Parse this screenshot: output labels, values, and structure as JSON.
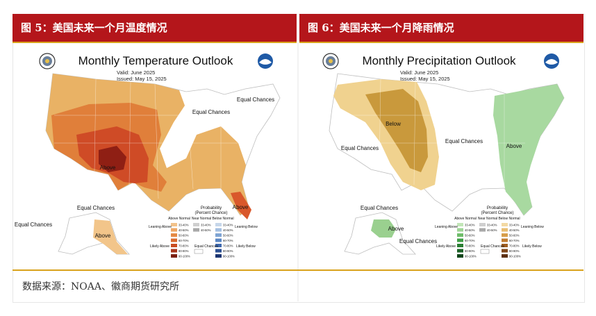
{
  "left_panel": {
    "header": "图 5：美国未来一个月温度情况",
    "map_title": "Monthly Temperature Outlook",
    "valid": "Valid:   June 2025",
    "issued": "Issued:   May 15, 2025",
    "labels": [
      "Above",
      "Equal Chances",
      "Equal Chances",
      "Above",
      "Equal Chances",
      "Above",
      "Equal Chances"
    ],
    "colors": {
      "light": "#e9b265",
      "mid": "#e07f3a",
      "strong": "#cf4b26",
      "darkest": "#8f1f14",
      "alaska": "#f2c58a"
    }
  },
  "right_panel": {
    "header": "图 6：美国未来一个月降雨情况",
    "map_title": "Monthly Precipitation Outlook",
    "valid": "Valid:   June 2025",
    "issued": "Issued:   May 15, 2025",
    "labels": [
      "Below",
      "Equal Chances",
      "Equal Chances",
      "Above",
      "Equal Chances",
      "Above",
      "Equal Chances"
    ],
    "colors": {
      "below_light": "#f0d28f",
      "below_mid": "#c9993c",
      "above": "#a8d9a0",
      "above_alaska": "#9ad08f"
    }
  },
  "legend": {
    "title": "Probability",
    "subtitle": "(Percent Chance)",
    "col_above": "Above Normal",
    "col_near": "Near Normal",
    "col_below": "Below Normal",
    "ranges": [
      "33-40%",
      "40-50%",
      "50-60%",
      "60-70%",
      "70-80%",
      "80-90%",
      "90-100%"
    ],
    "near_ranges": [
      "33-40%",
      "40-50%"
    ],
    "leaning_above": "Leaning Above",
    "likely_above": "Likely Above",
    "leaning_below": "Leaning Below",
    "likely_below": "Likely Below",
    "equal_chances": "Equal Chances",
    "temp_above_colors": [
      "#f2c28a",
      "#eea866",
      "#e58a45",
      "#d96a2e",
      "#c94e22",
      "#a8351b",
      "#7a1f12"
    ],
    "temp_below_colors": [
      "#c6d6ea",
      "#a4bfe0",
      "#7fa4d3",
      "#5a86c3",
      "#3f69ad",
      "#2b4f92",
      "#1b3572"
    ],
    "precip_above_colors": [
      "#c2e6b8",
      "#9ed496",
      "#6fbd6a",
      "#3f9e45",
      "#2a7e33",
      "#1b6126",
      "#10451a"
    ],
    "precip_below_colors": [
      "#f3d9a3",
      "#e8bd72",
      "#d79e4a",
      "#c07c30",
      "#a05f22",
      "#7f4718",
      "#5c3010"
    ],
    "near_colors": [
      "#cfcfcf",
      "#a9a9a9"
    ]
  },
  "source": "数据来源：NOAA、徽商期货研究所"
}
